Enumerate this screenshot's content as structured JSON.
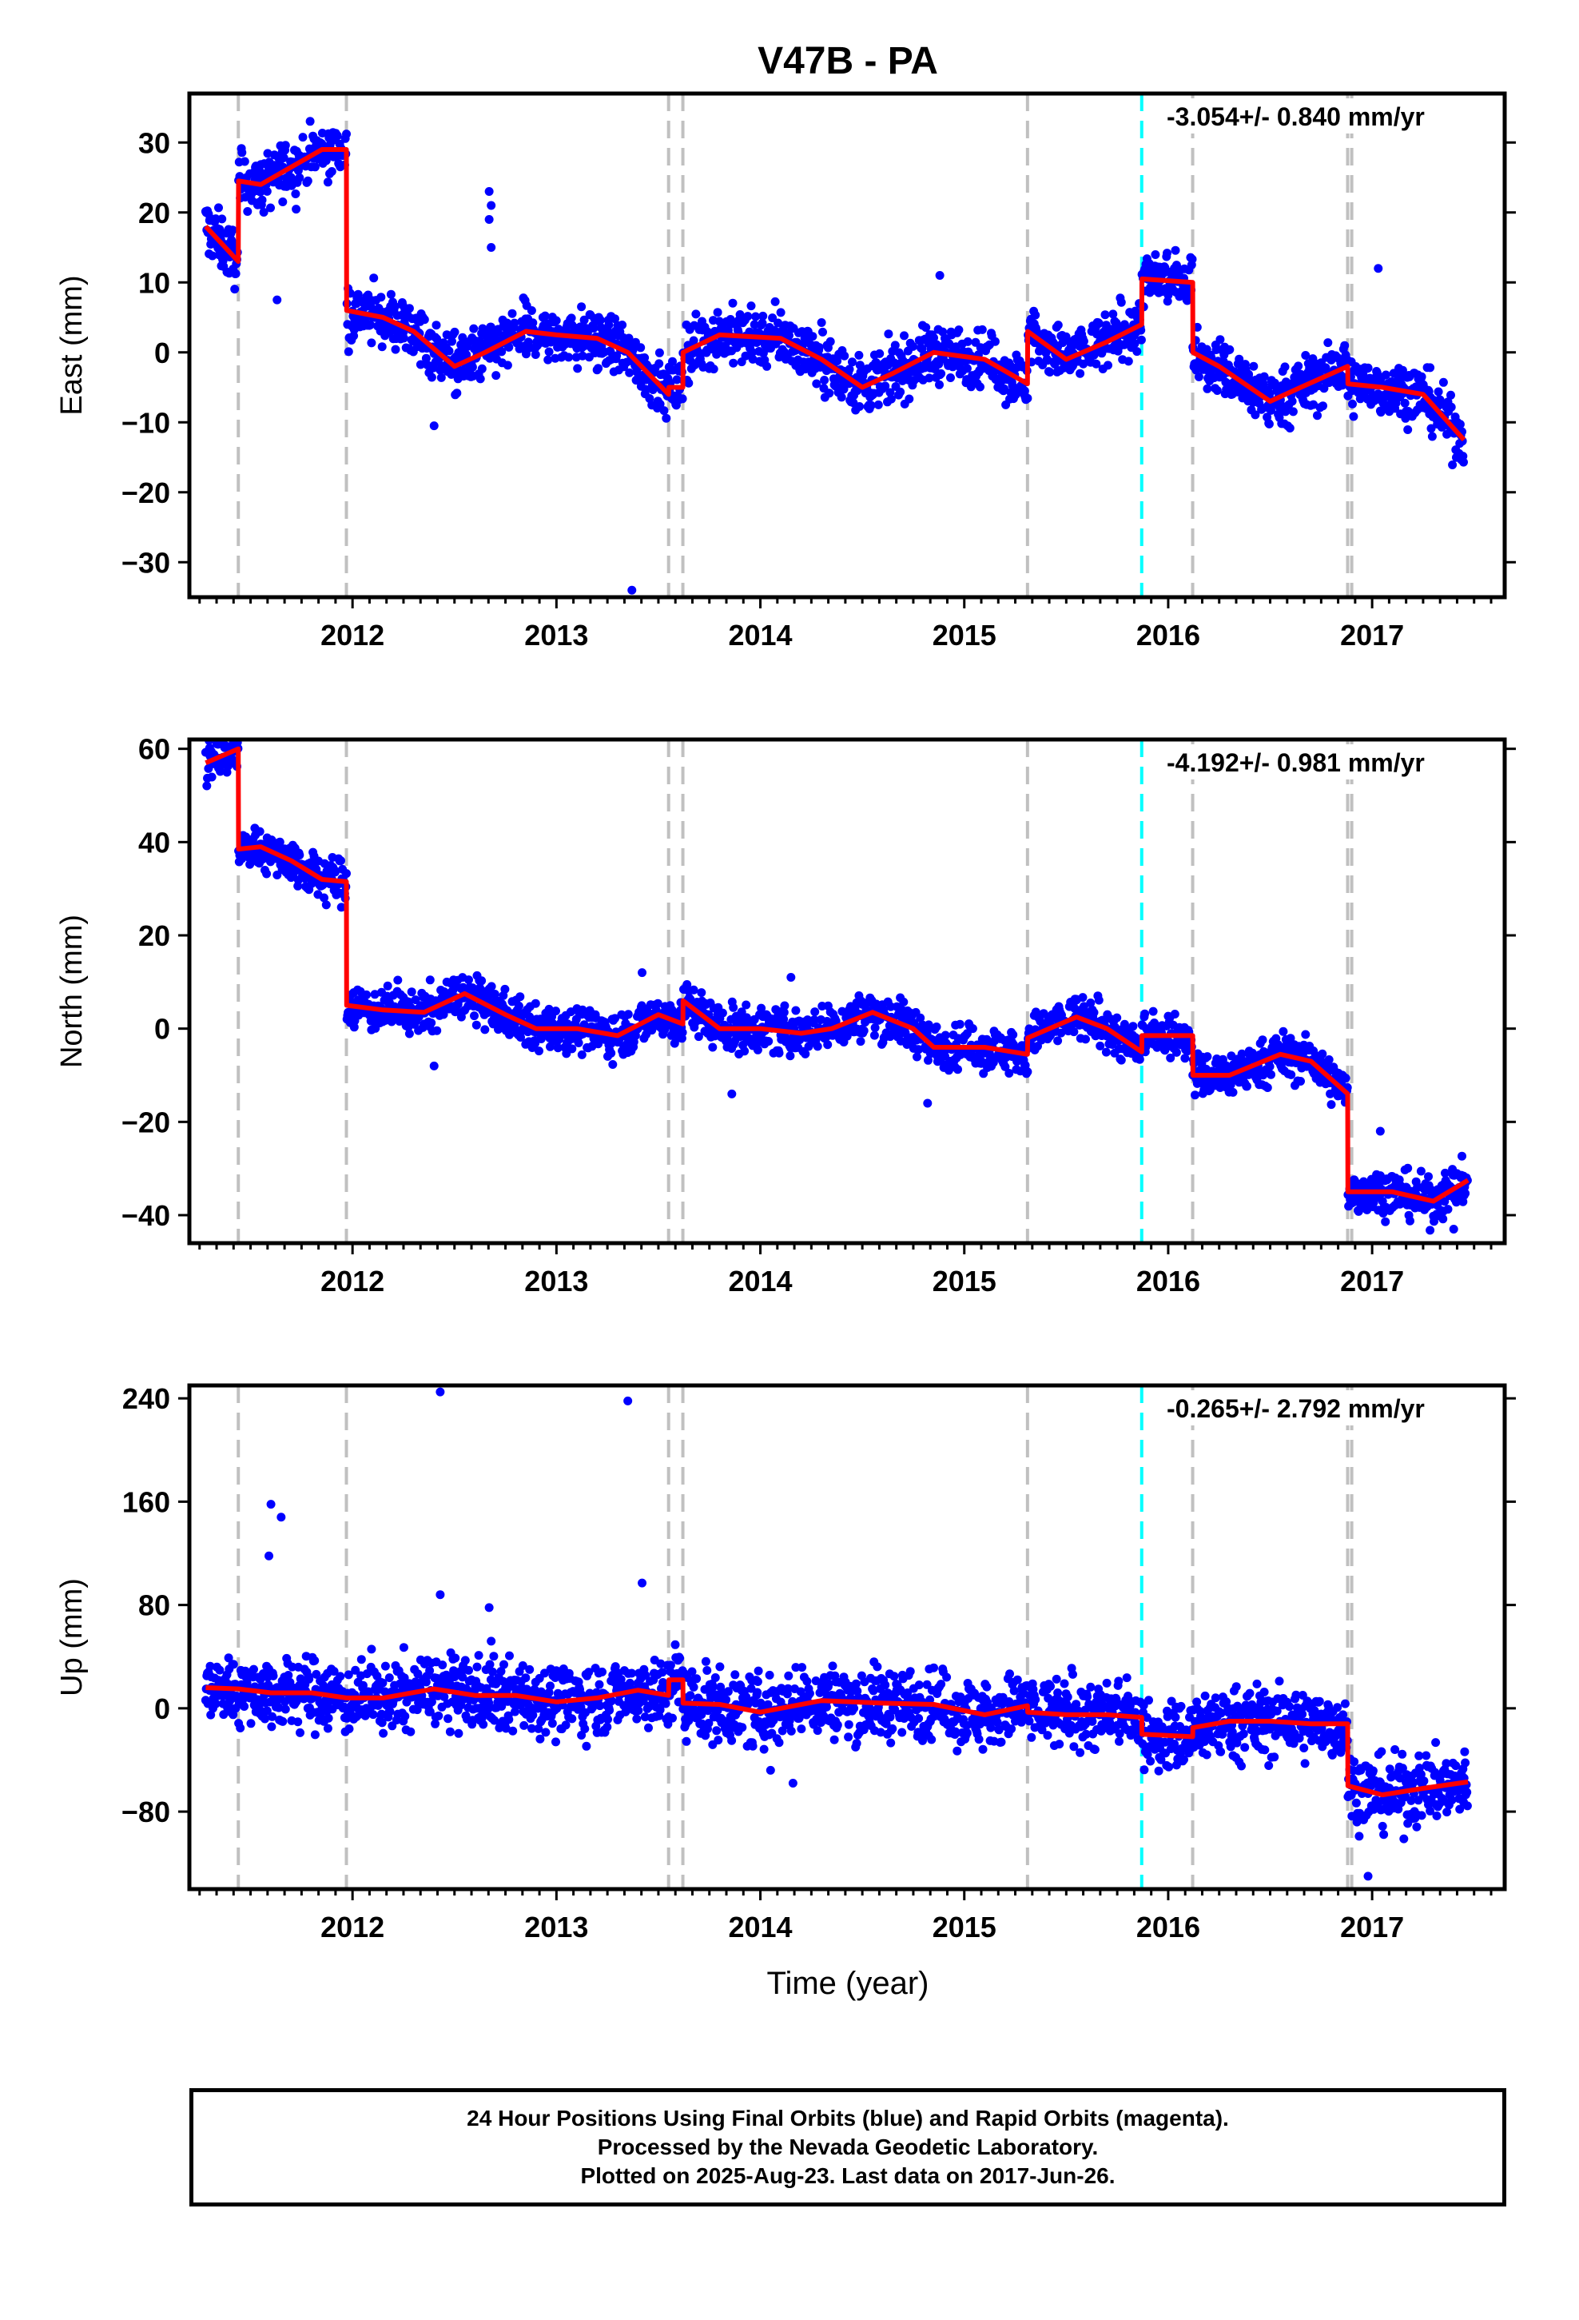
{
  "title": "V47B - PA",
  "xlabel": "Time (year)",
  "colors": {
    "data": "#0000ff",
    "model": "#ff0000",
    "event_break": "#c0c0c0",
    "equipment_break": "#00ffff",
    "frame": "#000000"
  },
  "footer": {
    "line1": "24 Hour Positions Using Final Orbits (blue) and Rapid Orbits (magenta).",
    "line2": "Processed by the Nevada Geodetic Laboratory.",
    "line3": "Plotted on 2025-Aug-23. Last data on 2017-Jun-26."
  },
  "chart_data": [
    {
      "type": "scatter",
      "component": "east",
      "ylabel": "East (mm)",
      "rate_label": "-3.054+/- 0.840 mm/yr",
      "xlim": [
        2011.2,
        2017.65
      ],
      "ylim": [
        -35,
        37
      ],
      "yticks": [
        -30,
        -20,
        -10,
        0,
        10,
        20,
        30
      ],
      "ytick_labels": [
        "−30",
        "−20",
        "−10",
        "0",
        "10",
        "20",
        "30"
      ],
      "xticks": [
        2012,
        2013,
        2014,
        2015,
        2016,
        2017
      ],
      "xtick_labels": [
        "2012",
        "2013",
        "2014",
        "2015",
        "2016",
        "2017"
      ],
      "gray_breaks": [
        2011.44,
        2011.97,
        2013.55,
        2013.62,
        2015.31,
        2016.12,
        2016.88,
        2016.9
      ],
      "cyan_breaks": [
        2015.87
      ],
      "model": [
        [
          2011.28,
          18
        ],
        [
          2011.44,
          13
        ],
        [
          2011.441,
          24.5
        ],
        [
          2011.55,
          24
        ],
        [
          2011.7,
          26.5
        ],
        [
          2011.85,
          29
        ],
        [
          2011.97,
          29
        ],
        [
          2011.971,
          6
        ],
        [
          2012.15,
          5
        ],
        [
          2012.3,
          3
        ],
        [
          2012.5,
          -2
        ],
        [
          2012.65,
          0
        ],
        [
          2012.85,
          3
        ],
        [
          2013.0,
          2.5
        ],
        [
          2013.2,
          2
        ],
        [
          2013.35,
          0
        ],
        [
          2013.55,
          -6
        ],
        [
          2013.551,
          -5
        ],
        [
          2013.62,
          -5
        ],
        [
          2013.621,
          0
        ],
        [
          2013.8,
          2.5
        ],
        [
          2014.1,
          2
        ],
        [
          2014.3,
          -1
        ],
        [
          2014.5,
          -5
        ],
        [
          2014.65,
          -3
        ],
        [
          2014.85,
          0
        ],
        [
          2015.1,
          -1
        ],
        [
          2015.31,
          -4.5
        ],
        [
          2015.311,
          3
        ],
        [
          2015.5,
          -1
        ],
        [
          2015.7,
          1.5
        ],
        [
          2015.87,
          4
        ],
        [
          2015.871,
          10.5
        ],
        [
          2016.12,
          10
        ],
        [
          2016.121,
          0
        ],
        [
          2016.25,
          -2
        ],
        [
          2016.5,
          -7
        ],
        [
          2016.65,
          -5
        ],
        [
          2016.88,
          -2
        ],
        [
          2016.881,
          -4.5
        ],
        [
          2017.05,
          -5
        ],
        [
          2017.25,
          -6
        ],
        [
          2017.45,
          -12.5
        ]
      ],
      "outliers": [
        [
          2011.63,
          7.5
        ],
        [
          2012.4,
          -10.5
        ],
        [
          2012.67,
          23
        ],
        [
          2012.68,
          21
        ],
        [
          2012.67,
          19
        ],
        [
          2012.68,
          15
        ],
        [
          2013.37,
          -34
        ],
        [
          2014.88,
          11
        ],
        [
          2017.03,
          12
        ]
      ]
    },
    {
      "type": "scatter",
      "component": "north",
      "ylabel": "North (mm)",
      "rate_label": "-4.192+/- 0.981 mm/yr",
      "xlim": [
        2011.2,
        2017.65
      ],
      "ylim": [
        -46,
        62
      ],
      "yticks": [
        -40,
        -20,
        0,
        20,
        40,
        60
      ],
      "ytick_labels": [
        "−40",
        "−20",
        "0",
        "20",
        "40",
        "60"
      ],
      "xticks": [
        2012,
        2013,
        2014,
        2015,
        2016,
        2017
      ],
      "xtick_labels": [
        "2012",
        "2013",
        "2014",
        "2015",
        "2016",
        "2017"
      ],
      "gray_breaks": [
        2011.44,
        2011.97,
        2013.55,
        2013.62,
        2015.31,
        2016.12,
        2016.88,
        2016.9
      ],
      "cyan_breaks": [
        2015.87
      ],
      "model": [
        [
          2011.28,
          57
        ],
        [
          2011.44,
          60
        ],
        [
          2011.441,
          38.5
        ],
        [
          2011.55,
          39
        ],
        [
          2011.7,
          36
        ],
        [
          2011.85,
          32
        ],
        [
          2011.97,
          31.5
        ],
        [
          2011.971,
          5
        ],
        [
          2012.15,
          4
        ],
        [
          2012.35,
          3.5
        ],
        [
          2012.55,
          7.5
        ],
        [
          2012.75,
          3
        ],
        [
          2012.9,
          0
        ],
        [
          2013.1,
          0
        ],
        [
          2013.3,
          -1.5
        ],
        [
          2013.5,
          3
        ],
        [
          2013.62,
          1
        ],
        [
          2013.621,
          6
        ],
        [
          2013.8,
          0
        ],
        [
          2014.0,
          0
        ],
        [
          2014.2,
          -1
        ],
        [
          2014.35,
          0
        ],
        [
          2014.55,
          3.5
        ],
        [
          2014.75,
          0
        ],
        [
          2014.85,
          -4
        ],
        [
          2015.1,
          -4
        ],
        [
          2015.31,
          -5.5
        ],
        [
          2015.311,
          -2
        ],
        [
          2015.55,
          2.5
        ],
        [
          2015.7,
          0
        ],
        [
          2015.87,
          -5
        ],
        [
          2015.871,
          -1.5
        ],
        [
          2016.12,
          -1.5
        ],
        [
          2016.121,
          -10
        ],
        [
          2016.3,
          -10
        ],
        [
          2016.55,
          -5.5
        ],
        [
          2016.7,
          -7
        ],
        [
          2016.88,
          -14
        ],
        [
          2016.881,
          -35
        ],
        [
          2017.1,
          -35
        ],
        [
          2017.3,
          -37
        ],
        [
          2017.47,
          -32.5
        ]
      ],
      "outliers": [
        [
          2012.4,
          -8
        ],
        [
          2013.42,
          12
        ],
        [
          2013.86,
          -14
        ],
        [
          2014.15,
          11
        ],
        [
          2014.82,
          -16
        ],
        [
          2017.04,
          -22
        ],
        [
          2017.4,
          -43
        ]
      ]
    },
    {
      "type": "scatter",
      "component": "up",
      "ylabel": "Up (mm)",
      "rate_label": "-0.265+/- 2.792 mm/yr",
      "xlim": [
        2011.2,
        2017.65
      ],
      "ylim": [
        -140,
        250
      ],
      "yticks": [
        -80,
        0,
        80,
        160,
        240
      ],
      "ytick_labels": [
        "−80",
        "0",
        "80",
        "160",
        "240"
      ],
      "xticks": [
        2012,
        2013,
        2014,
        2015,
        2016,
        2017
      ],
      "xtick_labels": [
        "2012",
        "2013",
        "2014",
        "2015",
        "2016",
        "2017"
      ],
      "gray_breaks": [
        2011.44,
        2011.97,
        2013.55,
        2013.62,
        2015.31,
        2016.12,
        2016.88,
        2016.9
      ],
      "cyan_breaks": [
        2015.87
      ],
      "model": [
        [
          2011.28,
          16
        ],
        [
          2011.44,
          15
        ],
        [
          2011.6,
          12
        ],
        [
          2011.8,
          12
        ],
        [
          2011.97,
          8
        ],
        [
          2012.15,
          8
        ],
        [
          2012.4,
          15
        ],
        [
          2012.6,
          10
        ],
        [
          2012.8,
          10
        ],
        [
          2013.0,
          5
        ],
        [
          2013.2,
          8
        ],
        [
          2013.4,
          14
        ],
        [
          2013.55,
          10
        ],
        [
          2013.551,
          22
        ],
        [
          2013.62,
          22
        ],
        [
          2013.621,
          4
        ],
        [
          2013.8,
          3
        ],
        [
          2014.0,
          -3
        ],
        [
          2014.3,
          6
        ],
        [
          2014.6,
          4
        ],
        [
          2014.85,
          3
        ],
        [
          2015.1,
          -5
        ],
        [
          2015.31,
          2
        ],
        [
          2015.311,
          -3
        ],
        [
          2015.5,
          -5
        ],
        [
          2015.7,
          -5
        ],
        [
          2015.87,
          -7
        ],
        [
          2015.871,
          -20
        ],
        [
          2016.12,
          -22
        ],
        [
          2016.121,
          -15
        ],
        [
          2016.3,
          -10
        ],
        [
          2016.5,
          -10
        ],
        [
          2016.7,
          -12
        ],
        [
          2016.88,
          -12
        ],
        [
          2016.881,
          -60
        ],
        [
          2017.05,
          -67
        ],
        [
          2017.25,
          -62
        ],
        [
          2017.47,
          -57
        ]
      ],
      "outliers": [
        [
          2011.6,
          158
        ],
        [
          2011.59,
          118
        ],
        [
          2011.65,
          148
        ],
        [
          2012.43,
          245
        ],
        [
          2012.43,
          88
        ],
        [
          2012.67,
          78
        ],
        [
          2012.68,
          52
        ],
        [
          2013.35,
          238
        ],
        [
          2013.42,
          97
        ],
        [
          2014.16,
          -58
        ],
        [
          2014.05,
          -48
        ],
        [
          2016.98,
          -130
        ]
      ]
    }
  ]
}
